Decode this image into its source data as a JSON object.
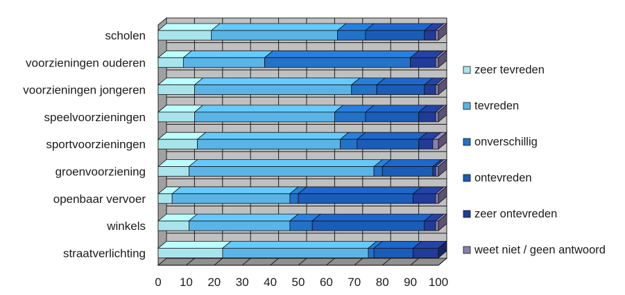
{
  "chart_data": {
    "type": "bar",
    "orientation": "horizontal",
    "stacked": true,
    "style_3d": true,
    "categories": [
      "scholen",
      "voorzieningen ouderen",
      "voorzieningen jongeren",
      "speelvoorzieningen",
      "sportvoorzieningen",
      "groenvoorziening",
      "openbaar vervoer",
      "winkels",
      "straatverlichting"
    ],
    "series": [
      {
        "name": "zeer tevreden",
        "color": "#a8e4ec",
        "values": [
          19,
          9,
          13,
          13,
          14,
          11,
          5,
          11,
          23
        ]
      },
      {
        "name": "tevreden",
        "color": "#5ab4e6",
        "values": [
          45,
          29,
          56,
          50,
          51,
          66,
          42,
          36,
          52
        ]
      },
      {
        "name": "onverschillig",
        "color": "#2272c8",
        "values": [
          10,
          52,
          9,
          11,
          6,
          3,
          3,
          8,
          2
        ]
      },
      {
        "name": "ontevreden",
        "color": "#1a5cb8",
        "values": [
          21,
          0,
          17,
          19,
          22,
          18,
          41,
          40,
          14
        ]
      },
      {
        "name": "zeer ontevreden",
        "color": "#203c98",
        "values": [
          4,
          9,
          4,
          6,
          5,
          1,
          8,
          4,
          9
        ]
      },
      {
        "name": "weet niet / geen antwoord",
        "color": "#8a7fb0",
        "values": [
          1,
          1,
          1,
          1,
          2,
          1,
          1,
          1,
          0
        ]
      }
    ],
    "xlim": [
      0,
      100
    ],
    "xticks": [
      "0",
      "10",
      "20",
      "30",
      "40",
      "50",
      "60",
      "70",
      "80",
      "90",
      "100"
    ],
    "grid": true,
    "legend_position": "right",
    "title": "",
    "xlabel": "",
    "ylabel": ""
  },
  "colors": {
    "plot_wall": "#c0c0c0",
    "plot_floor": "#909090",
    "gridline": "#1a1a1a"
  }
}
